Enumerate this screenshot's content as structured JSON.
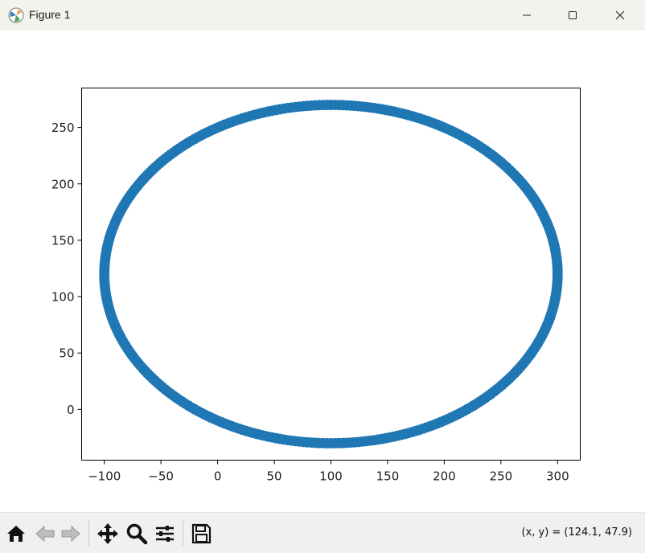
{
  "window": {
    "title": "Figure 1"
  },
  "toolbar": {
    "tools": [
      "home-icon",
      "back-icon",
      "forward-icon",
      "pan-icon",
      "zoom-icon",
      "configure-subplots-icon",
      "save-icon"
    ],
    "coordinates": "(x, y) = (124.1, 47.9)"
  },
  "colors": {
    "series": "#1f77b4",
    "titlebar": "#f3f3ee",
    "toolbar": "#f0f0f0"
  },
  "chart_data": {
    "type": "scatter",
    "title": "",
    "xlabel": "",
    "ylabel": "",
    "xlim": [
      -120,
      320
    ],
    "ylim": [
      -45,
      285
    ],
    "xticks": [
      -100,
      -50,
      0,
      50,
      100,
      150,
      200,
      250,
      300
    ],
    "xtick_labels": [
      "−100",
      "−50",
      "0",
      "50",
      "100",
      "150",
      "200",
      "250",
      "300"
    ],
    "yticks": [
      0,
      50,
      100,
      150,
      200,
      250
    ],
    "ytick_labels": [
      "0",
      "50",
      "100",
      "150",
      "200",
      "250"
    ],
    "grid": false,
    "series": [
      {
        "shape": "ellipse",
        "center": [
          100,
          120
        ],
        "radius_x": 200,
        "radius_y": 150,
        "point_count": 360
      }
    ]
  }
}
